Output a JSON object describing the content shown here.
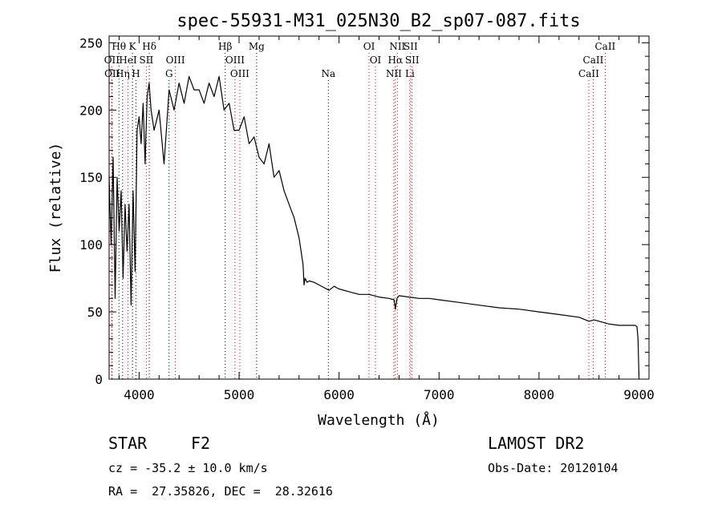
{
  "chart_data": {
    "type": "line",
    "title": "spec-55931-M31_025N30_B2_sp07-087.fits",
    "xlabel": "Wavelength (Å)",
    "ylabel": "Flux (relative)",
    "xlim": [
      3700,
      9100
    ],
    "ylim": [
      0,
      255
    ],
    "xticks": [
      4000,
      5000,
      6000,
      7000,
      8000,
      9000
    ],
    "yticks": [
      0,
      50,
      100,
      150,
      200,
      250
    ],
    "grid": false,
    "series": [
      {
        "x": [
          3700,
          3720,
          3740,
          3760,
          3780,
          3800,
          3820,
          3840,
          3860,
          3880,
          3900,
          3920,
          3940,
          3960,
          3980,
          4000,
          4020,
          4040,
          4060,
          4080,
          4100,
          4120,
          4150,
          4200,
          4250,
          4300,
          4350,
          4400,
          4450,
          4500,
          4550,
          4600,
          4650,
          4700,
          4750,
          4800,
          4850,
          4900,
          4950,
          5000,
          5050,
          5100,
          5150,
          5200,
          5250,
          5300,
          5350,
          5400,
          5450,
          5500,
          5550,
          5600,
          5620,
          5640,
          5650,
          5660,
          5680,
          5700,
          5750,
          5800,
          5850,
          5900,
          5950,
          6000,
          6100,
          6200,
          6300,
          6400,
          6500,
          6550,
          6563,
          6580,
          6600,
          6700,
          6800,
          6900,
          7000,
          7200,
          7400,
          7600,
          7800,
          8000,
          8200,
          8400,
          8500,
          8550,
          8600,
          8700,
          8800,
          8900,
          8960,
          8980,
          8990,
          9000
        ],
        "values": [
          150,
          100,
          165,
          60,
          150,
          110,
          140,
          75,
          130,
          95,
          130,
          55,
          140,
          80,
          185,
          195,
          175,
          205,
          160,
          210,
          220,
          200,
          185,
          200,
          160,
          215,
          200,
          220,
          205,
          225,
          215,
          215,
          205,
          220,
          210,
          225,
          200,
          205,
          185,
          185,
          195,
          175,
          180,
          165,
          160,
          175,
          150,
          155,
          140,
          130,
          120,
          105,
          95,
          85,
          70,
          75,
          72,
          73,
          72,
          70,
          68,
          66,
          69,
          67,
          65,
          63,
          63,
          61,
          60,
          59,
          52,
          60,
          62,
          61,
          60,
          60,
          59,
          57,
          55,
          53,
          52,
          50,
          48,
          46,
          43,
          44,
          43,
          41,
          40,
          40,
          40,
          39,
          30,
          2
        ]
      }
    ],
    "lines": [
      {
        "label": "Hθ",
        "x": 3798,
        "row": 1,
        "color": "#000000"
      },
      {
        "label": "K",
        "x": 3934,
        "row": 1,
        "color": "#000000"
      },
      {
        "label": "Hδ",
        "x": 4102,
        "row": 1,
        "color": "#000000"
      },
      {
        "label": "Hβ",
        "x": 4861,
        "row": 1,
        "color": "#000000"
      },
      {
        "label": "Mg",
        "x": 5175,
        "row": 1,
        "color": "#000000"
      },
      {
        "label": "OI",
        "x": 6300,
        "row": 1,
        "color": "#cc0000"
      },
      {
        "label": "NII",
        "x": 6583,
        "row": 1,
        "color": "#cc0000"
      },
      {
        "label": "SII",
        "x": 6716,
        "row": 1,
        "color": "#cc0000"
      },
      {
        "label": "CaII",
        "x": 8662,
        "row": 1,
        "color": "#cc0000"
      },
      {
        "label": "OII",
        "x": 3727,
        "row": 2,
        "color": "#cc0000"
      },
      {
        "label": "HeI",
        "x": 3889,
        "row": 2,
        "color": "#cc0000"
      },
      {
        "label": "SII",
        "x": 4072,
        "row": 2,
        "color": "#cc0000"
      },
      {
        "label": "OIII",
        "x": 4363,
        "row": 2,
        "color": "#cc0000"
      },
      {
        "label": "OIII",
        "x": 4959,
        "row": 2,
        "color": "#cc0000"
      },
      {
        "label": "OI",
        "x": 6364,
        "row": 2,
        "color": "#cc0000"
      },
      {
        "label": "Hα",
        "x": 6563,
        "row": 2,
        "color": "#cc0000"
      },
      {
        "label": "SII",
        "x": 6731,
        "row": 2,
        "color": "#cc0000"
      },
      {
        "label": "CaII",
        "x": 8542,
        "row": 2,
        "color": "#cc0000"
      },
      {
        "label": "OII",
        "x": 3730,
        "row": 3,
        "color": "#cc0000"
      },
      {
        "label": "Hη",
        "x": 3835,
        "row": 3,
        "color": "#000000"
      },
      {
        "label": "H",
        "x": 3969,
        "row": 3,
        "color": "#000000"
      },
      {
        "label": "G",
        "x": 4300,
        "row": 3,
        "color": "#000000"
      },
      {
        "label": "OIII",
        "x": 5007,
        "row": 3,
        "color": "#cc0000"
      },
      {
        "label": "Na",
        "x": 5893,
        "row": 3,
        "color": "#000000"
      },
      {
        "label": "NII",
        "x": 6548,
        "row": 3,
        "color": "#cc0000"
      },
      {
        "label": "Li",
        "x": 6708,
        "row": 3,
        "color": "#cc0000"
      },
      {
        "label": "CaII",
        "x": 8498,
        "row": 3,
        "color": "#cc0000"
      }
    ]
  },
  "info": {
    "class_label": "STAR",
    "subclass": "F2",
    "survey": "LAMOST DR2",
    "redshift": "cz = -35.2 ± 10.0 km/s",
    "obs_date": "Obs-Date: 20120104",
    "coords": "RA =  27.35826, DEC =  28.32616"
  }
}
